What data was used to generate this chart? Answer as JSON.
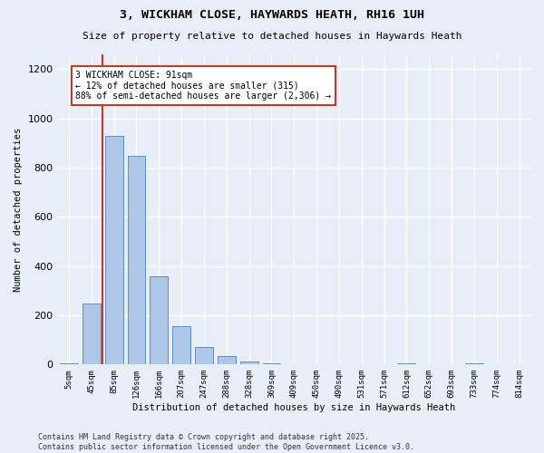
{
  "title": "3, WICKHAM CLOSE, HAYWARDS HEATH, RH16 1UH",
  "subtitle": "Size of property relative to detached houses in Haywards Heath",
  "xlabel": "Distribution of detached houses by size in Haywards Heath",
  "ylabel": "Number of detached properties",
  "categories": [
    "5sqm",
    "45sqm",
    "85sqm",
    "126sqm",
    "166sqm",
    "207sqm",
    "247sqm",
    "288sqm",
    "328sqm",
    "369sqm",
    "409sqm",
    "450sqm",
    "490sqm",
    "531sqm",
    "571sqm",
    "612sqm",
    "652sqm",
    "693sqm",
    "733sqm",
    "774sqm",
    "814sqm"
  ],
  "values": [
    5,
    248,
    930,
    848,
    358,
    157,
    70,
    33,
    13,
    5,
    2,
    0,
    0,
    0,
    0,
    5,
    0,
    0,
    5,
    0,
    0
  ],
  "bar_color": "#aec6e8",
  "bar_edge_color": "#5a8fc0",
  "vline_color": "#c0392b",
  "annotation_text": "3 WICKHAM CLOSE: 91sqm\n← 12% of detached houses are smaller (315)\n88% of semi-detached houses are larger (2,306) →",
  "annotation_box_color": "#ffffff",
  "annotation_box_edge_color": "#c0392b",
  "ylim": [
    0,
    1260
  ],
  "background_color": "#e8eef8",
  "grid_color": "#ffffff",
  "footer": "Contains HM Land Registry data © Crown copyright and database right 2025.\nContains public sector information licensed under the Open Government Licence v3.0."
}
